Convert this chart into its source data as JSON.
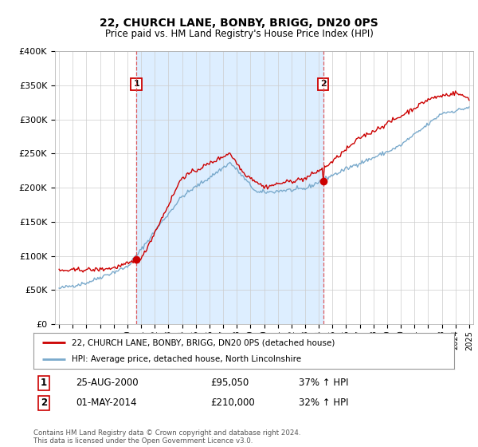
{
  "title": "22, CHURCH LANE, BONBY, BRIGG, DN20 0PS",
  "subtitle": "Price paid vs. HM Land Registry's House Price Index (HPI)",
  "legend_line1": "22, CHURCH LANE, BONBY, BRIGG, DN20 0PS (detached house)",
  "legend_line2": "HPI: Average price, detached house, North Lincolnshire",
  "footer": "Contains HM Land Registry data © Crown copyright and database right 2024.\nThis data is licensed under the Open Government Licence v3.0.",
  "sale1_label": "1",
  "sale1_date": "25-AUG-2000",
  "sale1_price": "£95,050",
  "sale1_hpi": "37% ↑ HPI",
  "sale2_label": "2",
  "sale2_date": "01-MAY-2014",
  "sale2_price": "£210,000",
  "sale2_hpi": "32% ↑ HPI",
  "sale1_x": 2000.65,
  "sale1_y": 95050,
  "sale2_x": 2014.33,
  "sale2_y": 210000,
  "ylim": [
    0,
    400000
  ],
  "xlim": [
    1994.7,
    2025.3
  ],
  "red_color": "#cc0000",
  "blue_color": "#7aaacc",
  "shade_color": "#ddeeff",
  "vline_color": "#dd4444",
  "background_color": "#ffffff",
  "grid_color": "#cccccc"
}
